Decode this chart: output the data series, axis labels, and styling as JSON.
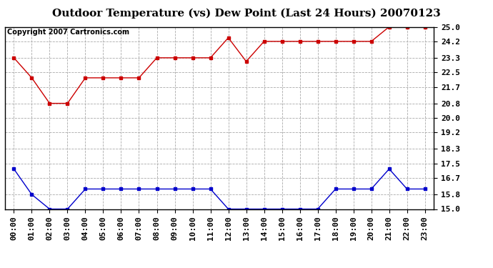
{
  "title": "Outdoor Temperature (vs) Dew Point (Last 24 Hours) 20070123",
  "copyright_text": "Copyright 2007 Cartronics.com",
  "hours": [
    "00:00",
    "01:00",
    "02:00",
    "03:00",
    "04:00",
    "05:00",
    "06:00",
    "07:00",
    "08:00",
    "09:00",
    "10:00",
    "11:00",
    "12:00",
    "13:00",
    "14:00",
    "15:00",
    "16:00",
    "17:00",
    "18:00",
    "19:00",
    "20:00",
    "21:00",
    "22:00",
    "23:00"
  ],
  "temp_red": [
    23.3,
    22.2,
    20.8,
    20.8,
    22.2,
    22.2,
    22.2,
    22.2,
    23.3,
    23.3,
    23.3,
    23.3,
    24.4,
    23.1,
    24.2,
    24.2,
    24.2,
    24.2,
    24.2,
    24.2,
    24.2,
    25.0,
    25.0,
    25.0
  ],
  "temp_blue": [
    17.2,
    15.8,
    15.0,
    15.0,
    16.1,
    16.1,
    16.1,
    16.1,
    16.1,
    16.1,
    16.1,
    16.1,
    15.0,
    15.0,
    15.0,
    15.0,
    15.0,
    15.0,
    16.1,
    16.1,
    16.1,
    17.2,
    16.1,
    16.1
  ],
  "red_color": "#cc0000",
  "blue_color": "#0000cc",
  "bg_color": "#ffffff",
  "plot_bg_color": "#ffffff",
  "grid_color": "#aaaaaa",
  "ylim_min": 15.0,
  "ylim_max": 25.0,
  "yticks": [
    15.0,
    15.8,
    16.7,
    17.5,
    18.3,
    19.2,
    20.0,
    20.8,
    21.7,
    22.5,
    23.3,
    24.2,
    25.0
  ],
  "title_fontsize": 11,
  "copyright_fontsize": 7,
  "tick_fontsize": 8
}
